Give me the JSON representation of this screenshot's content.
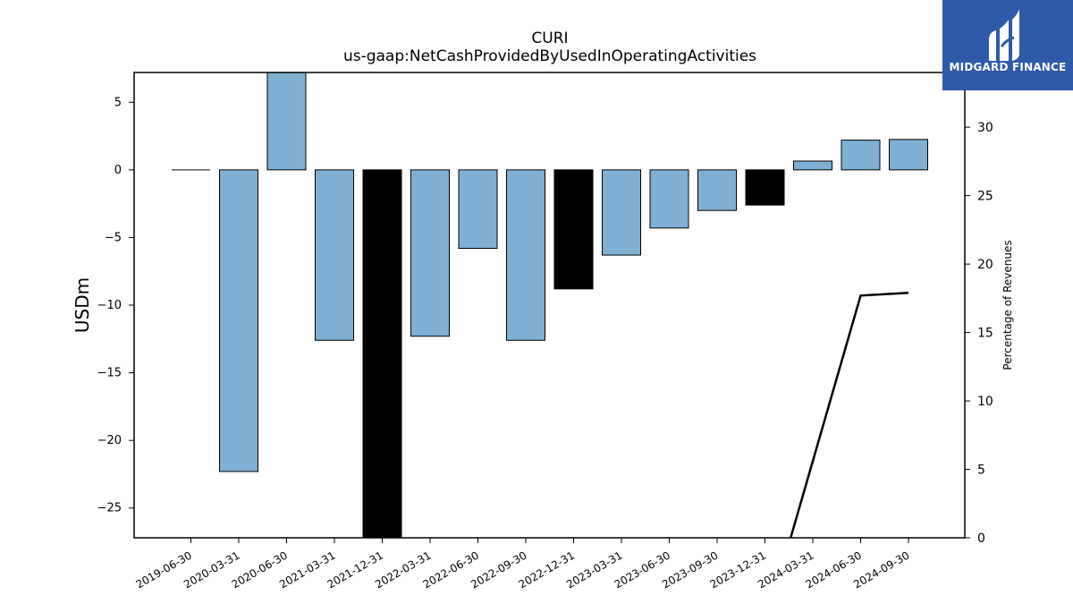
{
  "chart_data": {
    "type": "bar",
    "title": "CURI",
    "subtitle": "us-gaap:NetCashProvidedByUsedInOperatingActivities",
    "ylabel": "USDm",
    "ylabel_right": "Percentage of Revenues",
    "ylim": [
      -27.2,
      7.2
    ],
    "ylim_right": [
      0,
      34
    ],
    "categories": [
      "2019-06-30",
      "2020-03-31",
      "2020-06-30",
      "2021-03-31",
      "2021-12-31",
      "2022-03-31",
      "2022-06-30",
      "2022-09-30",
      "2022-12-31",
      "2023-03-31",
      "2023-06-30",
      "2023-09-30",
      "2023-12-31",
      "2024-03-31",
      "2024-06-30",
      "2024-09-30"
    ],
    "series": [
      {
        "type": "bar",
        "values": [
          0.0,
          -22.3,
          7.2,
          -12.6,
          -27.2,
          -12.3,
          -5.8,
          -12.6,
          -8.8,
          -6.3,
          -4.3,
          -3.0,
          -2.6,
          0.65,
          2.2,
          2.25
        ],
        "colors": [
          "#7fb0d4",
          "#7fb0d4",
          "#7fb0d4",
          "#7fb0d4",
          "#000000",
          "#7fb0d4",
          "#7fb0d4",
          "#7fb0d4",
          "#000000",
          "#7fb0d4",
          "#7fb0d4",
          "#7fb0d4",
          "#000000",
          "#7fb0d4",
          "#7fb0d4",
          "#7fb0d4"
        ]
      },
      {
        "type": "line",
        "axis": "right",
        "color": "#000000",
        "points": [
          {
            "x": "2024-03-31",
            "y": 5.6
          },
          {
            "x": "2024-06-30",
            "y": 17.7
          },
          {
            "x": "2024-09-30",
            "y": 17.9
          }
        ],
        "start_y": 0
      }
    ],
    "yticks_left": [
      5,
      0,
      -5,
      -10,
      -15,
      -20,
      -25
    ],
    "yticks_right": [
      0,
      5,
      10,
      15,
      20,
      25,
      30
    ],
    "grid": false
  },
  "logo": {
    "text": "MIDGARD FINANCE"
  }
}
